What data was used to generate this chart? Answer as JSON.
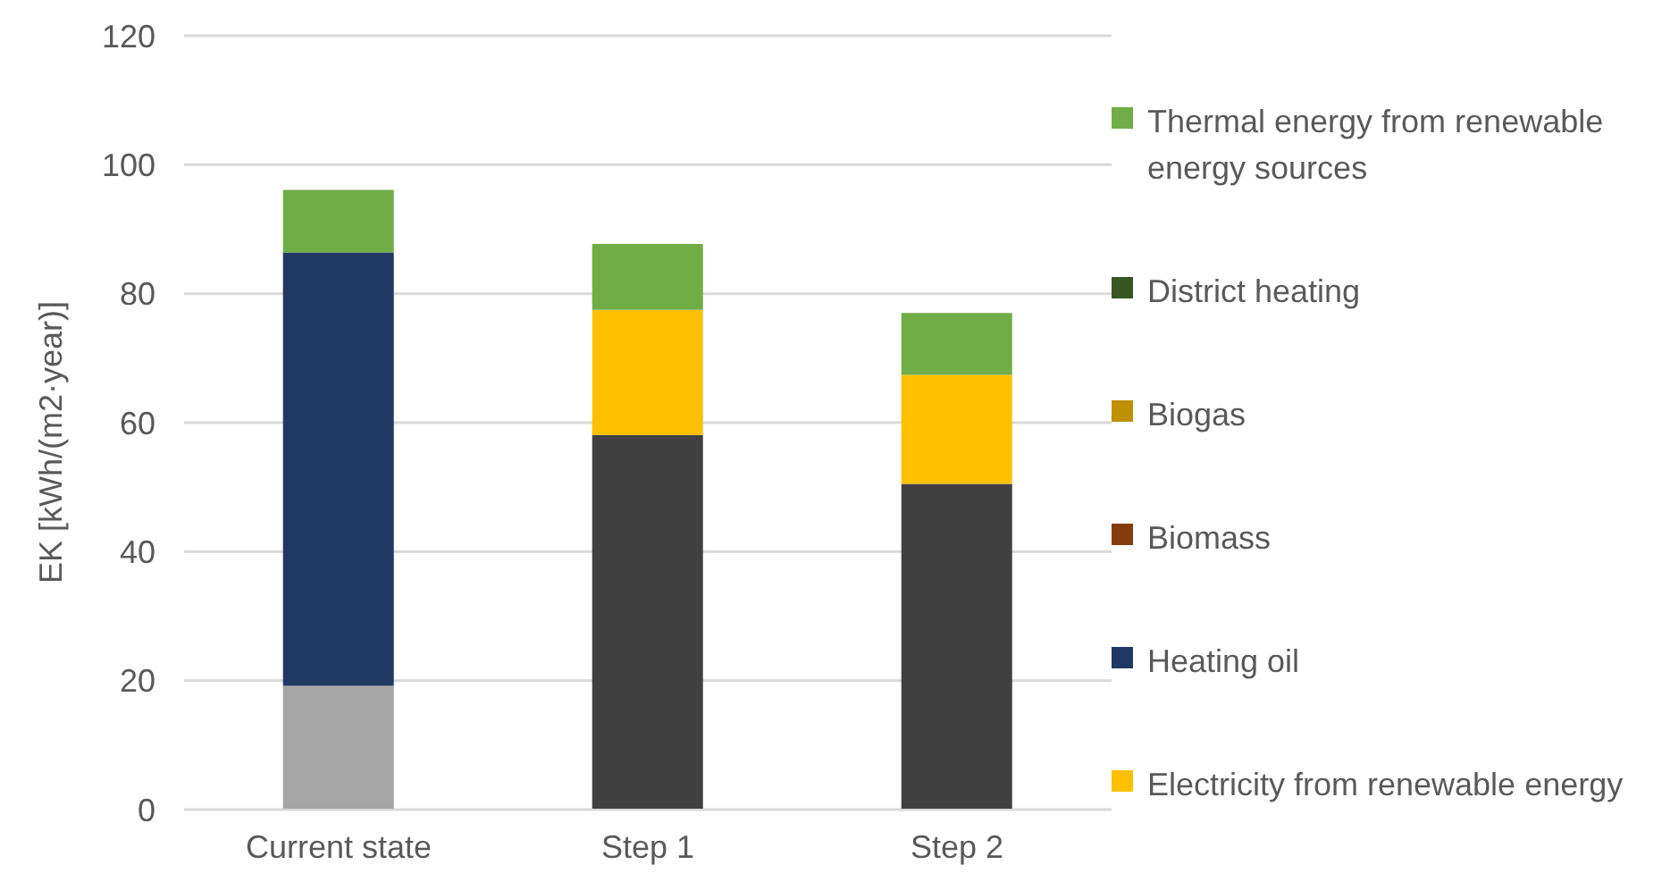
{
  "chart_data": {
    "type": "bar",
    "stacked": true,
    "ylabel": "EK [kWh/(m2·year)]",
    "categories": [
      "Current state",
      "Step 1",
      "Step 2"
    ],
    "series": [
      {
        "color": "#a5a5a5",
        "values": [
          19.2,
          0,
          0
        ]
      },
      {
        "color": "#404040",
        "values": [
          0,
          58.1,
          50.5
        ]
      },
      {
        "name": "Electricity from renewable energy",
        "color": "#ffc000",
        "values": [
          0,
          19.4,
          16.9
        ]
      },
      {
        "name": "Heating oil",
        "color": "#203864",
        "values": [
          67.2,
          0,
          0
        ]
      },
      {
        "name": "Biomass",
        "color": "#843c0c",
        "values": [
          0,
          0,
          0
        ]
      },
      {
        "name": "Biogas",
        "color": "#bf9000",
        "values": [
          0,
          0,
          0
        ]
      },
      {
        "name": "District heating",
        "color": "#375623",
        "values": [
          0,
          0,
          0
        ]
      },
      {
        "name": "Thermal energy from renewable energy sources",
        "color": "#70ad47",
        "values": [
          9.7,
          10.2,
          9.6
        ]
      }
    ],
    "ylim": [
      0,
      120
    ],
    "yticks": [
      0,
      20,
      40,
      60,
      80,
      100,
      120
    ],
    "grid": "y",
    "legend": "right"
  }
}
